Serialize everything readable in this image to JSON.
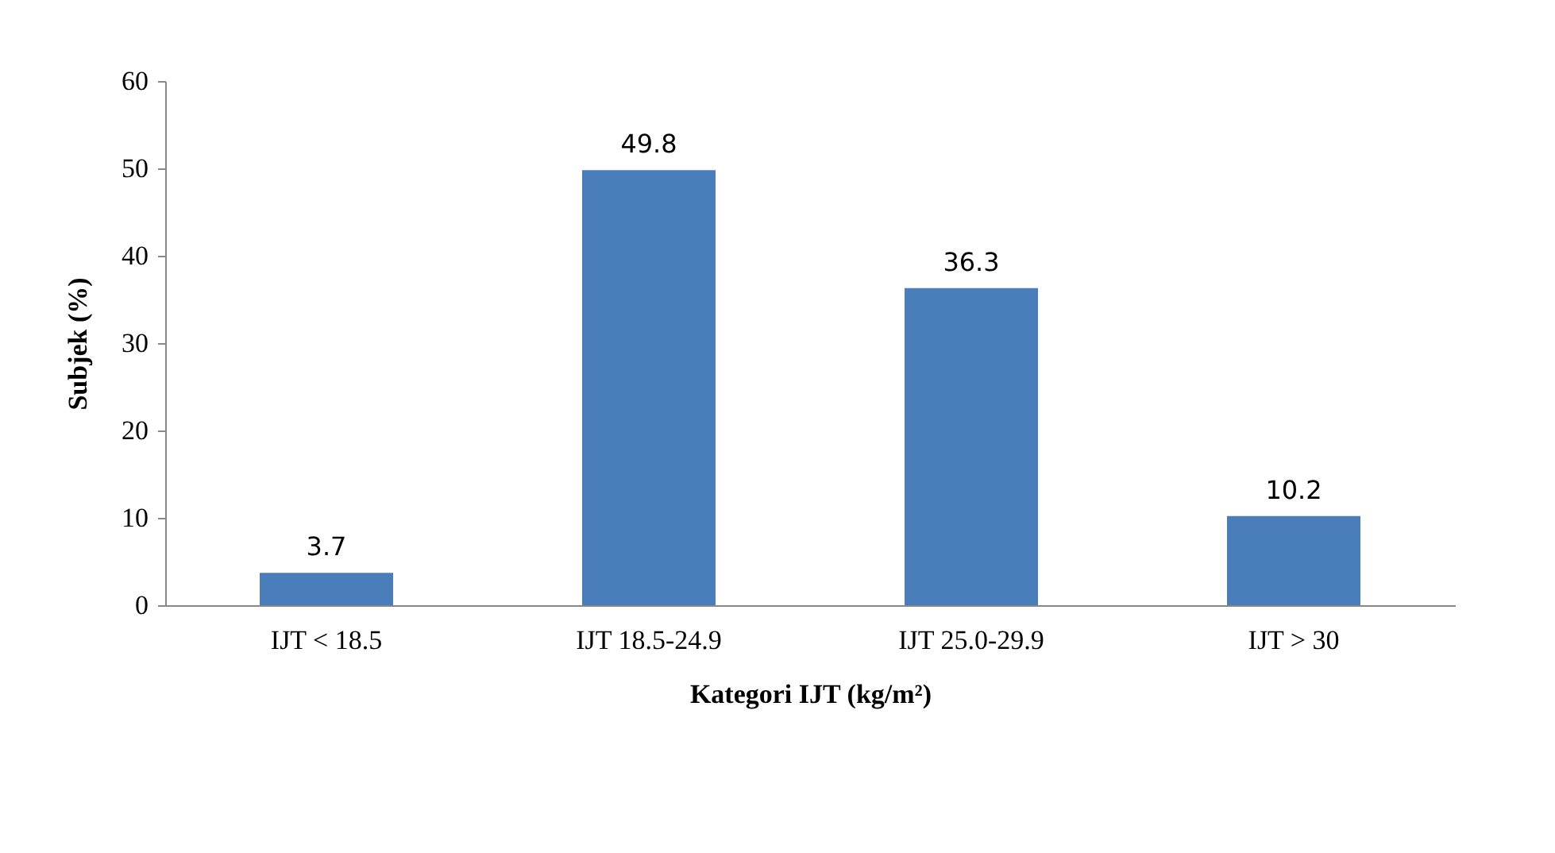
{
  "chart_data": {
    "type": "bar",
    "categories": [
      "IJT < 18.5",
      "IJT 18.5-24.9",
      "IJT 25.0-29.9",
      "IJT > 30"
    ],
    "values": [
      3.7,
      49.8,
      36.3,
      10.2
    ],
    "color": "#4a7ebb",
    "xlabel": "Kategori IJT (kg/m²)",
    "ylabel": "Subjek (%)",
    "ylim": [
      0,
      60
    ],
    "yticks": [
      0,
      10,
      20,
      30,
      40,
      50,
      60
    ],
    "data_labels": true,
    "grid": false
  }
}
